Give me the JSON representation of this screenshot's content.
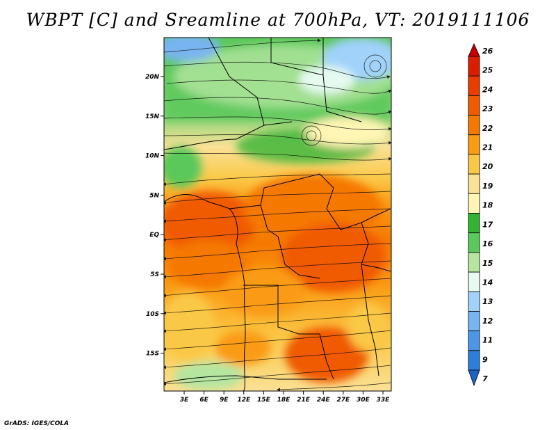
{
  "title": "WBPT [C] and Sreamline at 700hPa, VT: 2019111106",
  "credit": "GrADS: IGES/COLA",
  "map": {
    "lat_labels": [
      "20N",
      "15N",
      "10N",
      "5N",
      "EQ",
      "5S",
      "10S",
      "15S"
    ],
    "lon_labels": [
      "3E",
      "6E",
      "9E",
      "12E",
      "15E",
      "18E",
      "21E",
      "24E",
      "27E",
      "30E",
      "33E"
    ]
  },
  "colorbar": {
    "labels": [
      "26",
      "25",
      "24",
      "23",
      "22",
      "21",
      "20",
      "19",
      "18",
      "17",
      "16",
      "15",
      "14",
      "13",
      "12",
      "11",
      "9",
      "7"
    ],
    "colors": [
      "#c80000",
      "#dc1e00",
      "#eb3c00",
      "#f05a00",
      "#f57800",
      "#fa9b14",
      "#fac846",
      "#fae196",
      "#fff5b4",
      "#32b432",
      "#5ac85a",
      "#b4e6a0",
      "#e6faf0",
      "#a0d2fa",
      "#78b4f0",
      "#4b96e6",
      "#2d7ddc",
      "#1e64c8"
    ]
  }
}
